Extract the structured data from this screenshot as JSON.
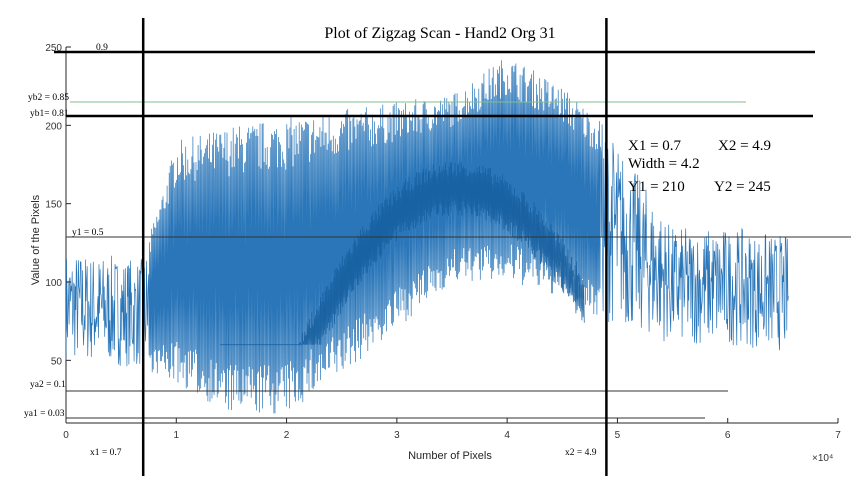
{
  "chart_data": {
    "type": "line",
    "title": "Plot of Zigzag Scan - Hand2 Org 31",
    "xlabel": "Number of Pixels",
    "ylabel": "Value of the Pixels",
    "x_multiplier": "×10⁴",
    "xlim": [
      0,
      7
    ],
    "ylim": [
      10,
      250
    ],
    "xticks": [
      "0",
      "1",
      "2",
      "3",
      "4",
      "5",
      "6",
      "7"
    ],
    "yticks": [
      "50",
      "100",
      "150",
      "200",
      "250"
    ],
    "series_color": "#1f6fb5",
    "approx_envelope": {
      "note": "",
      "x": [
        0,
        0.7,
        1.0,
        1.5,
        2.0,
        2.5,
        3.0,
        3.5,
        4.0,
        4.5,
        4.9,
        5.5,
        6.0,
        6.55
      ],
      "max": [
        120,
        115,
        190,
        200,
        205,
        210,
        215,
        220,
        245,
        225,
        200,
        135,
        135,
        130
      ],
      "min": [
        50,
        45,
        35,
        15,
        15,
        40,
        70,
        100,
        100,
        90,
        75,
        60,
        60,
        55
      ]
    },
    "vertical_lines": [
      {
        "label": "x1 = 0.7",
        "x": 0.7
      },
      {
        "label": "x2 = 4.9",
        "x": 4.9
      }
    ],
    "horizontal_lines": [
      {
        "label": "0.9",
        "y": 245
      },
      {
        "label": "yb2 = 0.85",
        "y": 220
      },
      {
        "label": "yb1= 0.81",
        "y": 208
      },
      {
        "label": "y1 = 0.5",
        "y": 128
      },
      {
        "label": "ya2 = 0.1",
        "y": 30
      },
      {
        "label": "ya1 = 0.03",
        "y": 8
      }
    ],
    "info_box": {
      "x1": "X1 = 0.7",
      "x2": "X2 = 4.9",
      "width": "Width = 4.2",
      "y1": "Y1 = 210",
      "y2": "Y2 = 245"
    }
  }
}
